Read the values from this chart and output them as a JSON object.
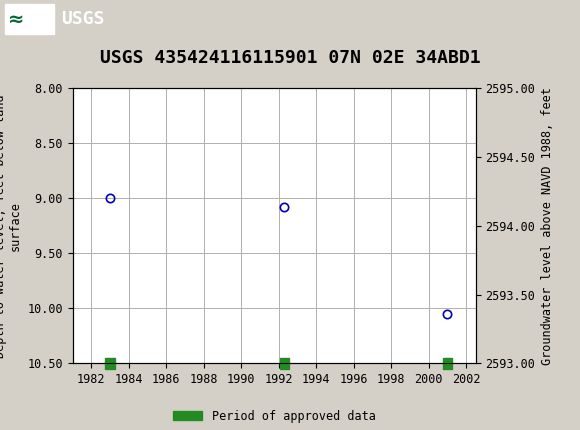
{
  "title": "USGS 435424116115901 07N 02E 34ABD1",
  "header_bg_color": "#006633",
  "plot_bg_color": "#ffffff",
  "outer_bg_color": "#d4d0c8",
  "grid_color": "#b0b0b0",
  "data_points": [
    {
      "year": 1983.0,
      "depth": 9.0
    },
    {
      "year": 1992.3,
      "depth": 9.08
    },
    {
      "year": 2001.0,
      "depth": 10.05
    }
  ],
  "period_bars": [
    {
      "year": 1983.0
    },
    {
      "year": 1992.3
    },
    {
      "year": 2001.0
    }
  ],
  "xlim": [
    1981,
    2002.5
  ],
  "xticks": [
    1982,
    1984,
    1986,
    1988,
    1990,
    1992,
    1994,
    1996,
    1998,
    2000,
    2002
  ],
  "ylim_bottom": 10.5,
  "ylim_top": 8.0,
  "yticks_left": [
    8.0,
    8.5,
    9.0,
    9.5,
    10.0,
    10.5
  ],
  "yticks_right": [
    2595.0,
    2594.5,
    2594.0,
    2593.5,
    2593.0
  ],
  "right_axis_top": 2595.0,
  "right_axis_bottom": 2593.0,
  "ylabel_left": "Depth to water level, feet below land\nsurface",
  "ylabel_right": "Groundwater level above NAVD 1988, feet",
  "marker_color": "#0000bb",
  "marker_size": 6,
  "period_bar_color": "#228B22",
  "period_bar_height": 0.1,
  "period_bar_width": 0.5,
  "legend_label": "Period of approved data",
  "title_fontsize": 13,
  "tick_fontsize": 8.5,
  "label_fontsize": 8.5,
  "font_family": "monospace"
}
